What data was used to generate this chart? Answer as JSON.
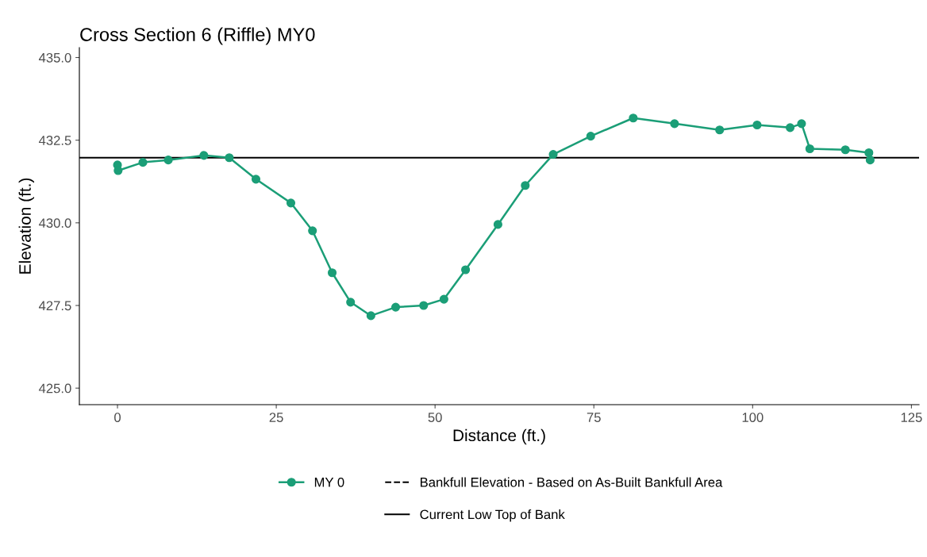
{
  "chart_data": {
    "type": "line",
    "title": "Cross Section 6 (Riffle) MY0",
    "xlabel": "Distance (ft.)",
    "ylabel": "Elevation (ft.)",
    "x": [
      0,
      0.1,
      4.0,
      8.0,
      13.6,
      17.6,
      21.8,
      27.3,
      30.7,
      33.8,
      36.7,
      39.9,
      43.8,
      48.2,
      51.4,
      54.8,
      59.9,
      64.2,
      68.6,
      74.5,
      81.2,
      87.7,
      94.8,
      100.7,
      105.9,
      107.7,
      109.0,
      114.6,
      118.3,
      118.5
    ],
    "series": [
      {
        "name": "MY 0",
        "color": "#1b9e77",
        "values": [
          431.75,
          431.58,
          431.83,
          431.9,
          432.04,
          431.97,
          431.32,
          430.6,
          429.76,
          428.49,
          427.6,
          427.19,
          427.45,
          427.5,
          427.69,
          428.58,
          429.95,
          431.13,
          432.07,
          432.62,
          433.17,
          433.0,
          432.81,
          432.96,
          432.88,
          433.0,
          432.24,
          432.21,
          432.12,
          431.9
        ]
      }
    ],
    "marker": "circle",
    "line_style": "solid",
    "ref_lines": [
      {
        "axis": "y",
        "value": null,
        "label": "Bankfull Elevation - Based on As-Built Bankfull Area",
        "color": "#000000",
        "line_style": "dashed"
      },
      {
        "axis": "y",
        "value": 431.97,
        "label": "Current Low Top of Bank",
        "color": "#000000",
        "line_style": "solid"
      }
    ],
    "xlim": [
      -6,
      126.2
    ],
    "xticks": [
      0,
      25,
      50,
      75,
      100,
      125
    ],
    "ylim": [
      424.5,
      435.3
    ],
    "yticks": [
      {
        "value": 425,
        "label": "425.0"
      },
      {
        "value": 427.5,
        "label": "427.5"
      },
      {
        "value": 430,
        "label": "430.0"
      },
      {
        "value": 432.5,
        "label": "432.5"
      },
      {
        "value": 435,
        "label": "435.0"
      }
    ],
    "grid": false,
    "legend": "bottom"
  }
}
